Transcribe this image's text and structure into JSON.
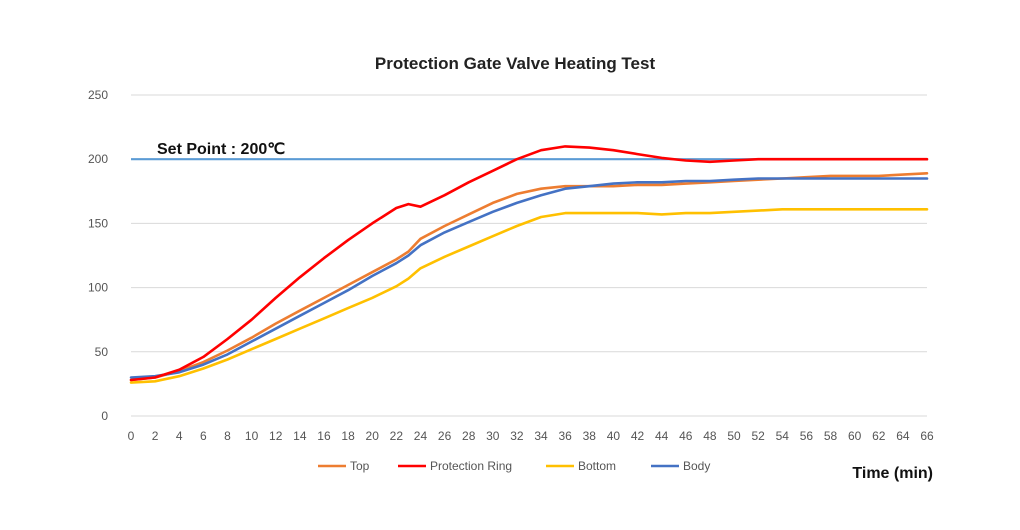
{
  "chart_data": {
    "type": "line",
    "title": "Protection Gate Valve Heating Test",
    "xlabel": "Time  (min)",
    "ylabel": "",
    "xlim": [
      0,
      66
    ],
    "ylim": [
      0,
      250
    ],
    "y_ticks": [
      "0",
      "50",
      "100",
      "150",
      "200",
      "250"
    ],
    "x_ticks": [
      "0",
      "2",
      "4",
      "6",
      "8",
      "10",
      "12",
      "14",
      "16",
      "18",
      "20",
      "22",
      "24",
      "26",
      "28",
      "30",
      "32",
      "34",
      "36",
      "38",
      "40",
      "42",
      "44",
      "46",
      "48",
      "50",
      "52",
      "54",
      "56",
      "58",
      "60",
      "62",
      "64",
      "66"
    ],
    "grid": "horizontal",
    "legend_position": "bottom",
    "annotation": {
      "text": "Set Point : 200℃",
      "value": 200,
      "color": "#5b9bd5"
    },
    "series": [
      {
        "name": "Top",
        "color": "#ed7d31",
        "x": [
          0,
          2,
          4,
          6,
          8,
          10,
          12,
          14,
          16,
          18,
          20,
          22,
          23,
          24,
          26,
          28,
          30,
          32,
          34,
          36,
          38,
          40,
          42,
          44,
          46,
          48,
          50,
          52,
          54,
          56,
          58,
          60,
          62,
          64,
          66
        ],
        "y": [
          28,
          30,
          35,
          42,
          51,
          61,
          72,
          82,
          92,
          102,
          112,
          122,
          128,
          138,
          148,
          157,
          166,
          173,
          177,
          179,
          179,
          179,
          180,
          180,
          181,
          182,
          183,
          184,
          185,
          186,
          187,
          187,
          187,
          188,
          189
        ]
      },
      {
        "name": "Protection Ring",
        "color": "#ff0000",
        "x": [
          0,
          2,
          4,
          6,
          8,
          10,
          12,
          14,
          16,
          18,
          20,
          22,
          23,
          24,
          26,
          28,
          30,
          32,
          34,
          36,
          38,
          40,
          42,
          44,
          46,
          48,
          50,
          52,
          54,
          56,
          58,
          60,
          62,
          64,
          66
        ],
        "y": [
          28,
          30,
          36,
          46,
          60,
          75,
          92,
          108,
          123,
          137,
          150,
          162,
          165,
          163,
          172,
          182,
          191,
          200,
          207,
          210,
          209,
          207,
          204,
          201,
          199,
          198,
          199,
          200,
          200,
          200,
          200,
          200,
          200,
          200,
          200
        ]
      },
      {
        "name": "Bottom",
        "color": "#ffc000",
        "x": [
          0,
          2,
          4,
          6,
          8,
          10,
          12,
          14,
          16,
          18,
          20,
          22,
          23,
          24,
          26,
          28,
          30,
          32,
          34,
          36,
          38,
          40,
          42,
          44,
          46,
          48,
          50,
          52,
          54,
          56,
          58,
          60,
          62,
          64,
          66
        ],
        "y": [
          26,
          27,
          31,
          37,
          44,
          52,
          60,
          68,
          76,
          84,
          92,
          101,
          107,
          115,
          124,
          132,
          140,
          148,
          155,
          158,
          158,
          158,
          158,
          157,
          158,
          158,
          159,
          160,
          161,
          161,
          161,
          161,
          161,
          161,
          161
        ]
      },
      {
        "name": "Body",
        "color": "#4472c4",
        "x": [
          0,
          2,
          4,
          6,
          8,
          10,
          12,
          14,
          16,
          18,
          20,
          22,
          23,
          24,
          26,
          28,
          30,
          32,
          34,
          36,
          38,
          40,
          42,
          44,
          46,
          48,
          50,
          52,
          54,
          56,
          58,
          60,
          62,
          64,
          66
        ],
        "y": [
          30,
          31,
          34,
          40,
          48,
          58,
          68,
          78,
          88,
          98,
          109,
          119,
          125,
          133,
          143,
          151,
          159,
          166,
          172,
          177,
          179,
          181,
          182,
          182,
          183,
          183,
          184,
          185,
          185,
          185,
          185,
          185,
          185,
          185,
          185
        ]
      }
    ]
  }
}
